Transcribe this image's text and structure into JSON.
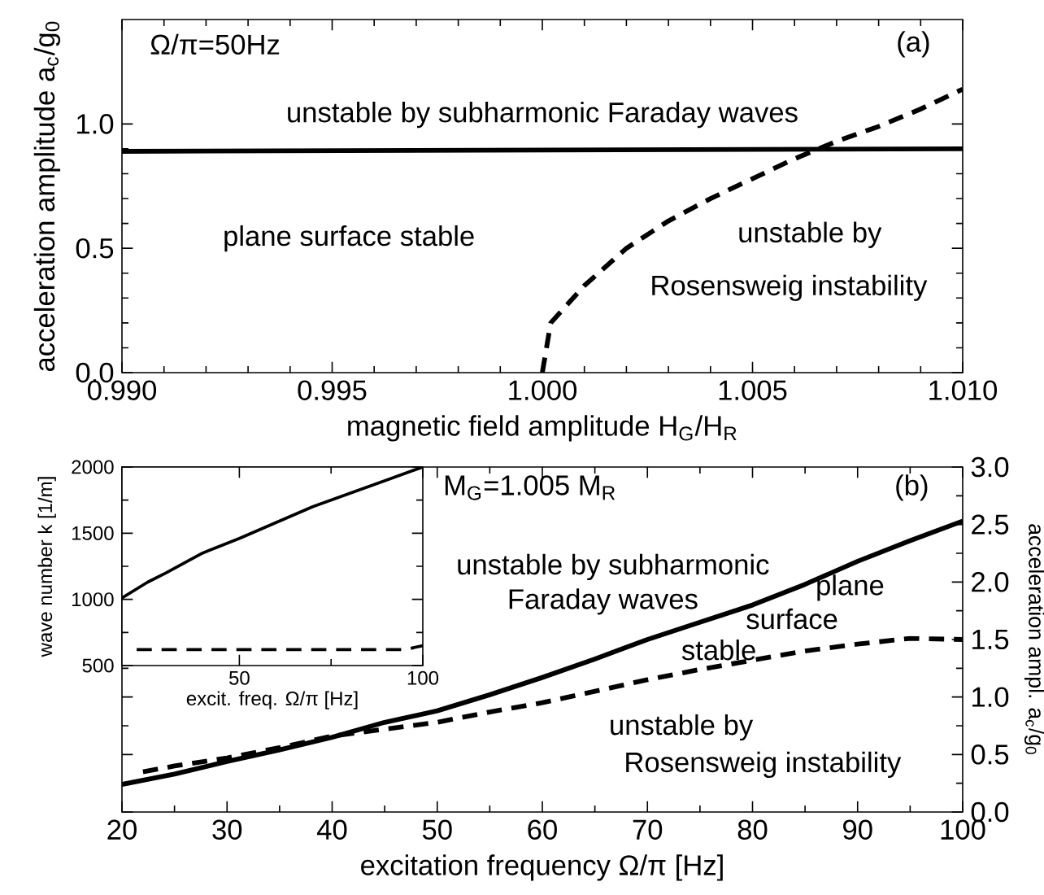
{
  "chart_data": [
    {
      "type": "line",
      "xlabel": "magnetic field amplitude H$_{G}$/H$_{R}$",
      "ylabel": "acceleration amplitude a$_{c}$/g$_{0}$",
      "xlim": [
        0.99,
        1.01
      ],
      "ylim": [
        0,
        1.42
      ],
      "xticks": [
        {
          "value": 0.99,
          "label": "0.990"
        },
        {
          "value": 0.995,
          "label": "0.995"
        },
        {
          "value": 1.0,
          "label": "1.000"
        },
        {
          "value": 1.005,
          "label": "1.005"
        },
        {
          "value": 1.01,
          "label": "1.010"
        }
      ],
      "yticks": [
        {
          "value": 0,
          "label": "0.0"
        },
        {
          "value": 0.5,
          "label": "0.5"
        },
        {
          "value": 1.0,
          "label": "1.0"
        }
      ],
      "annotations": [
        "Ω/π=50Hz",
        "(a)",
        "unstable by subharmonic Faraday waves",
        "plane surface stable",
        "unstable by",
        "Rosensweig instability"
      ],
      "series": [
        {
          "color": "#000000",
          "line_style": "solid",
          "x": [
            0.99,
            1.0,
            1.01
          ],
          "values": [
            0.89,
            0.895,
            0.9
          ]
        },
        {
          "color": "#000000",
          "line_style": "dashed",
          "x": [
            1.0,
            1.0002,
            1.001,
            1.002,
            1.003,
            1.004,
            1.005,
            1.006,
            1.007,
            1.008,
            1.009,
            1.01
          ],
          "values": [
            0,
            0.2,
            0.35,
            0.5,
            0.61,
            0.7,
            0.78,
            0.86,
            0.93,
            0.99,
            1.06,
            1.14
          ]
        }
      ]
    },
    {
      "type": "line",
      "xlabel": "excitation frequency Ω/π  [Hz]",
      "y2label": "acceleration ampl. a$_{c}$/g$_{0}$",
      "xlim": [
        20,
        100
      ],
      "y2lim": [
        0,
        3
      ],
      "xticks": [
        20,
        30,
        40,
        50,
        60,
        70,
        80,
        90,
        100
      ],
      "y2ticks": [
        {
          "value": 0,
          "label": "0.0"
        },
        {
          "value": 0.5,
          "label": "0.5"
        },
        {
          "value": 1.0,
          "label": "1.0"
        },
        {
          "value": 1.5,
          "label": "1.5"
        },
        {
          "value": 2.0,
          "label": "2.0"
        },
        {
          "value": 2.5,
          "label": "2.5"
        },
        {
          "value": 3.0,
          "label": "3.0"
        }
      ],
      "annotations": [
        "M$_{G}$=1.005 M$_{R}$",
        "(b)",
        "unstable by subharmonic",
        "Faraday waves",
        "plane",
        "surface",
        "stable",
        "unstable by",
        "Rosensweig instability"
      ],
      "series": [
        {
          "color": "#000000",
          "line_style": "solid",
          "axis": "y2",
          "x": [
            20,
            25,
            30,
            35,
            40,
            45,
            50,
            55,
            60,
            65,
            70,
            75,
            80,
            85,
            90,
            95,
            100
          ],
          "values": [
            0.24,
            0.33,
            0.44,
            0.54,
            0.65,
            0.78,
            0.88,
            1.02,
            1.17,
            1.33,
            1.5,
            1.65,
            1.8,
            1.98,
            2.18,
            2.36,
            2.53
          ]
        },
        {
          "color": "#000000",
          "line_style": "dashed",
          "axis": "y2",
          "x": [
            22,
            25,
            30,
            35,
            40,
            45,
            50,
            55,
            60,
            65,
            70,
            75,
            80,
            85,
            90,
            95,
            100
          ],
          "values": [
            0.35,
            0.4,
            0.47,
            0.56,
            0.66,
            0.72,
            0.78,
            0.87,
            0.95,
            1.05,
            1.15,
            1.24,
            1.32,
            1.4,
            1.46,
            1.51,
            1.5
          ]
        }
      ]
    },
    {
      "type": "line",
      "xlabel": "excit. freq. Ω/π [Hz]",
      "ylabel": "wave number k [1/m]",
      "xlim": [
        18,
        100
      ],
      "ylim": [
        500,
        2000
      ],
      "xticks": [
        50,
        100
      ],
      "yticks": [
        500,
        1000,
        1500,
        2000
      ],
      "series": [
        {
          "color": "#000000",
          "line_style": "solid",
          "x": [
            18,
            25,
            30,
            40,
            50,
            60,
            70,
            80,
            90,
            100
          ],
          "values": [
            1010,
            1130,
            1200,
            1350,
            1460,
            1580,
            1700,
            1800,
            1900,
            2000
          ]
        },
        {
          "color": "#000000",
          "line_style": "dashed",
          "x": [
            22,
            50,
            95,
            100
          ],
          "values": [
            620,
            620,
            620,
            650
          ]
        }
      ]
    }
  ]
}
